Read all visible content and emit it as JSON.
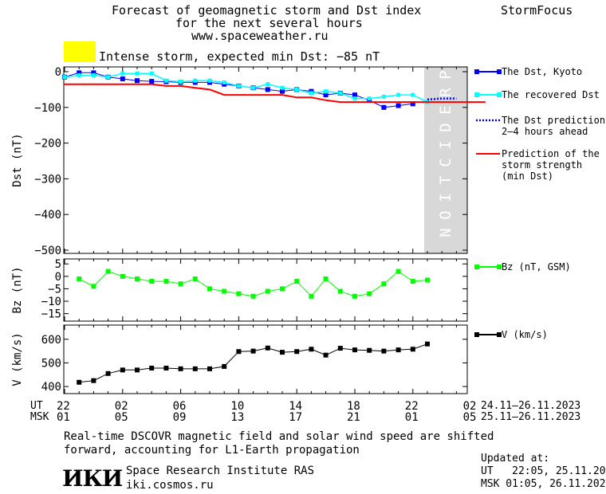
{
  "header": {
    "title_lines": [
      "Forecast of geomagnetic storm and Dst index",
      "for the next several hours",
      "www.spaceweather.ru"
    ],
    "brand": "StormFocus"
  },
  "storm_level": {
    "text": "Intense storm, expected min Dst: −85 nT",
    "color": "#ffff00"
  },
  "prediction_label": "PREDICTION",
  "legends": {
    "dst_kyoto": "The Dst, Kyoto",
    "recovered": "The recovered Dst",
    "prediction": [
      "The Dst prediction",
      "2–4 hours ahead"
    ],
    "strength": [
      "Prediction of the",
      "storm strength",
      "(min Dst)"
    ],
    "bz": "Bz (nT, GSM)",
    "v": "V (km/s)"
  },
  "x_axis": {
    "ut_label": "UT",
    "msk_label": "MSK",
    "ut_ticks": [
      "22",
      "02",
      "06",
      "10",
      "14",
      "18",
      "22",
      "02"
    ],
    "msk_ticks": [
      "01",
      "05",
      "09",
      "13",
      "17",
      "21",
      "01",
      "05"
    ],
    "ut_range": "24.11–26.11.2023",
    "msk_range": "25.11–26.11.2023"
  },
  "footer": {
    "note_lines": [
      "Real-time DSCOVR magnetic field and solar wind speed are shifted",
      "forward, accounting for L1-Earth propagation"
    ],
    "logo": "ИКИ",
    "institute": "Space Research Institute RAS",
    "site": "iki.cosmos.ru",
    "updated_label": "Updated at:",
    "updated_ut": "UT   22:05, 25.11.2023",
    "updated_msk": "MSK 01:05, 26.11.2023"
  },
  "colors": {
    "dst": "#0000ff",
    "recovered": "#00ffff",
    "prediction": "#0000ff",
    "strength": "#ff0000",
    "bz": "#00ff00",
    "v": "#000000",
    "shade": "#d8d8d8"
  },
  "chart_data": [
    {
      "type": "line",
      "name": "Dst",
      "ylabel": "Dst (nT)",
      "ylim": [
        -500,
        0
      ],
      "yticks": [
        "0",
        "−100",
        "−200",
        "−300",
        "−400",
        "−500"
      ],
      "ytick_values": [
        0,
        -100,
        -200,
        -300,
        -400,
        -500
      ],
      "xlim": [
        0,
        29
      ],
      "prediction_span": [
        25,
        29
      ],
      "series": [
        {
          "name": "The Dst, Kyoto",
          "x": [
            0,
            1,
            2,
            3,
            4,
            5,
            6,
            7,
            8,
            9,
            10,
            11,
            12,
            13,
            14,
            15,
            16,
            17,
            18,
            19,
            20,
            21,
            22,
            23,
            24
          ],
          "y": [
            -15,
            -3,
            -3,
            -15,
            -20,
            -25,
            -27,
            -28,
            -30,
            -30,
            -30,
            -35,
            -40,
            -45,
            -50,
            -55,
            -50,
            -55,
            -65,
            -60,
            -65,
            -80,
            -100,
            -95,
            -90
          ]
        },
        {
          "name": "The recovered Dst",
          "x": [
            0,
            1,
            2,
            3,
            4,
            5,
            6,
            7,
            8,
            9,
            10,
            11,
            12,
            13,
            14,
            15,
            16,
            17,
            18,
            19,
            20,
            21,
            22,
            23,
            24,
            25
          ],
          "y": [
            -15,
            -10,
            -10,
            -15,
            -5,
            -5,
            -5,
            -25,
            -28,
            -25,
            -25,
            -30,
            -40,
            -45,
            -35,
            -45,
            -50,
            -60,
            -55,
            -60,
            -75,
            -75,
            -70,
            -65,
            -65,
            -85
          ]
        },
        {
          "name": "The Dst prediction 2–4 hours ahead",
          "x": [
            25,
            26,
            27
          ],
          "y": [
            -78,
            -75,
            -75
          ]
        },
        {
          "name": "Prediction of the storm strength (min Dst)",
          "x": [
            -1,
            0,
            2,
            4,
            6,
            7,
            8,
            9,
            10,
            11,
            12,
            13,
            14,
            15,
            16,
            17,
            18,
            19,
            20,
            21,
            22,
            23,
            24,
            25,
            26,
            27,
            28,
            29
          ],
          "y": [
            -35,
            -35,
            -35,
            -35,
            -35,
            -40,
            -40,
            -45,
            -50,
            -65,
            -65,
            -65,
            -65,
            -65,
            -72,
            -72,
            -80,
            -85,
            -85,
            -85,
            -85,
            -85,
            -85,
            -85,
            -85,
            -85,
            -85,
            -85
          ]
        }
      ]
    },
    {
      "type": "line",
      "name": "Bz",
      "ylabel": "Bz (nT)",
      "ylim": [
        -18,
        7
      ],
      "yticks": [
        "5",
        "0",
        "−5",
        "−10",
        "−15"
      ],
      "ytick_values": [
        5,
        0,
        -5,
        -10,
        -15
      ],
      "series": [
        {
          "name": "Bz (nT, GSM)",
          "x": [
            1,
            2,
            3,
            4,
            5,
            6,
            7,
            8,
            9,
            10,
            11,
            12,
            13,
            14,
            15,
            16,
            17,
            18,
            19,
            20,
            21,
            22,
            23,
            24,
            25
          ],
          "y": [
            -1,
            -4,
            2,
            0,
            -1,
            -2,
            -2,
            -3,
            -1,
            -5,
            -6,
            -7,
            -8,
            -6,
            -5,
            -2,
            -8,
            -1,
            -6,
            -8,
            -7,
            -3,
            2,
            -2,
            -1.5
          ]
        }
      ]
    },
    {
      "type": "line",
      "name": "V",
      "ylabel": "V (km/s)",
      "ylim": [
        370,
        660
      ],
      "yticks": [
        "600",
        "500",
        "400"
      ],
      "ytick_values": [
        600,
        500,
        400
      ],
      "series": [
        {
          "name": "V (km/s)",
          "x": [
            1,
            2,
            3,
            4,
            5,
            6,
            7,
            8,
            9,
            10,
            11,
            12,
            13,
            14,
            15,
            16,
            17,
            18,
            19,
            20,
            21,
            22,
            23,
            24,
            25
          ],
          "y": [
            418,
            425,
            455,
            470,
            470,
            478,
            478,
            475,
            475,
            475,
            485,
            548,
            550,
            563,
            545,
            548,
            558,
            533,
            562,
            555,
            553,
            550,
            555,
            558,
            580
          ]
        }
      ]
    }
  ]
}
